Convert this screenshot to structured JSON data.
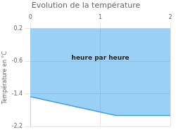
{
  "chart_data": {
    "type": "area",
    "title": "Evolution de la température",
    "ylabel": "Température en °C",
    "annotation": "heure par heure",
    "x": [
      0,
      1.22,
      2
    ],
    "values": [
      -1.47,
      -1.93,
      -1.93
    ],
    "xlim": [
      0,
      2
    ],
    "ylim": [
      -2.2,
      0.2
    ],
    "xticks": [
      0,
      1,
      2
    ],
    "yticks": [
      0.2,
      -0.6,
      -1.4,
      -2.2
    ],
    "grid": true
  }
}
